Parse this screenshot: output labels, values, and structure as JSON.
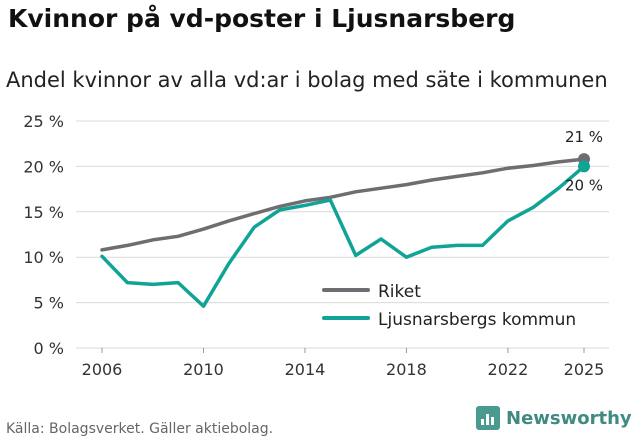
{
  "title": "Kvinnor på vd-poster i Ljusnarsberg",
  "subtitle": "Andel kvinnor av alla vd:ar i bolag med säte i kommunen",
  "source": "Källa: Bolagsverket. Gäller aktiebolag.",
  "brand": "Newsworthy",
  "chart_data": {
    "type": "line",
    "title": "Kvinnor på vd-poster i Ljusnarsberg",
    "subtitle": "Andel kvinnor av alla vd:ar i bolag med säte i kommunen",
    "xlabel": "",
    "ylabel": "",
    "x": [
      2006,
      2007,
      2008,
      2009,
      2010,
      2011,
      2012,
      2013,
      2014,
      2015,
      2016,
      2017,
      2018,
      2019,
      2020,
      2021,
      2022,
      2023,
      2024,
      2025
    ],
    "xticks": [
      2006,
      2010,
      2014,
      2018,
      2022,
      2025
    ],
    "yticks": [
      0,
      5,
      10,
      15,
      20,
      25
    ],
    "ytick_labels": [
      "0 %",
      "5 %",
      "10 %",
      "15 %",
      "20 %",
      "25 %"
    ],
    "ylim": [
      0,
      25
    ],
    "xlim": [
      2006,
      2025
    ],
    "grid": true,
    "legend_position": "bottom-right",
    "series": [
      {
        "name": "Riket",
        "color": "#6e6d72",
        "values": [
          10.8,
          11.3,
          11.9,
          12.3,
          13.1,
          14.0,
          14.8,
          15.6,
          16.2,
          16.6,
          17.2,
          17.6,
          18.0,
          18.5,
          18.9,
          19.3,
          19.8,
          20.1,
          20.5,
          20.8
        ],
        "end_label": "21 %"
      },
      {
        "name": "Ljusnarsbergs kommun",
        "color": "#11a396",
        "values": [
          10.1,
          7.2,
          7.0,
          7.2,
          4.6,
          9.3,
          13.3,
          15.2,
          15.7,
          16.3,
          10.2,
          12.0,
          10.0,
          11.1,
          11.3,
          11.3,
          14.0,
          15.5,
          17.6,
          20.0
        ],
        "end_label": "20 %"
      }
    ]
  }
}
